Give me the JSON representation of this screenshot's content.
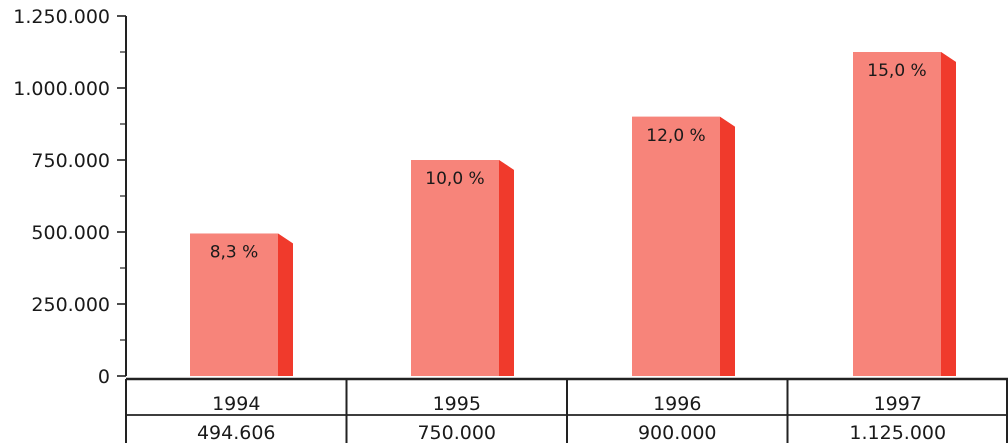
{
  "chart_data": {
    "type": "bar",
    "categories": [
      "1994",
      "1995",
      "1996",
      "1997"
    ],
    "values": [
      494606,
      750000,
      900000,
      1125000
    ],
    "bar_labels": [
      "8,3 %",
      "10,0 %",
      "12,0 %",
      "15,0 %"
    ],
    "table_values": [
      "494.606",
      "750.000",
      "900.000",
      "1.125.000"
    ],
    "y_ticks": [
      0,
      250000,
      500000,
      750000,
      1000000,
      1250000
    ],
    "y_tick_labels": [
      "0",
      "250.000",
      "500.000",
      "750.000",
      "1.000.000",
      "1.250.000"
    ],
    "ylim": [
      0,
      1250000
    ],
    "title": "",
    "xlabel": "",
    "ylabel": "",
    "grid": false,
    "legend": "none",
    "colors": {
      "bar_front": "#f7847a",
      "bar_side": "#f03a2c",
      "bar_top": "#f05a4c",
      "axis": "#222222"
    }
  }
}
